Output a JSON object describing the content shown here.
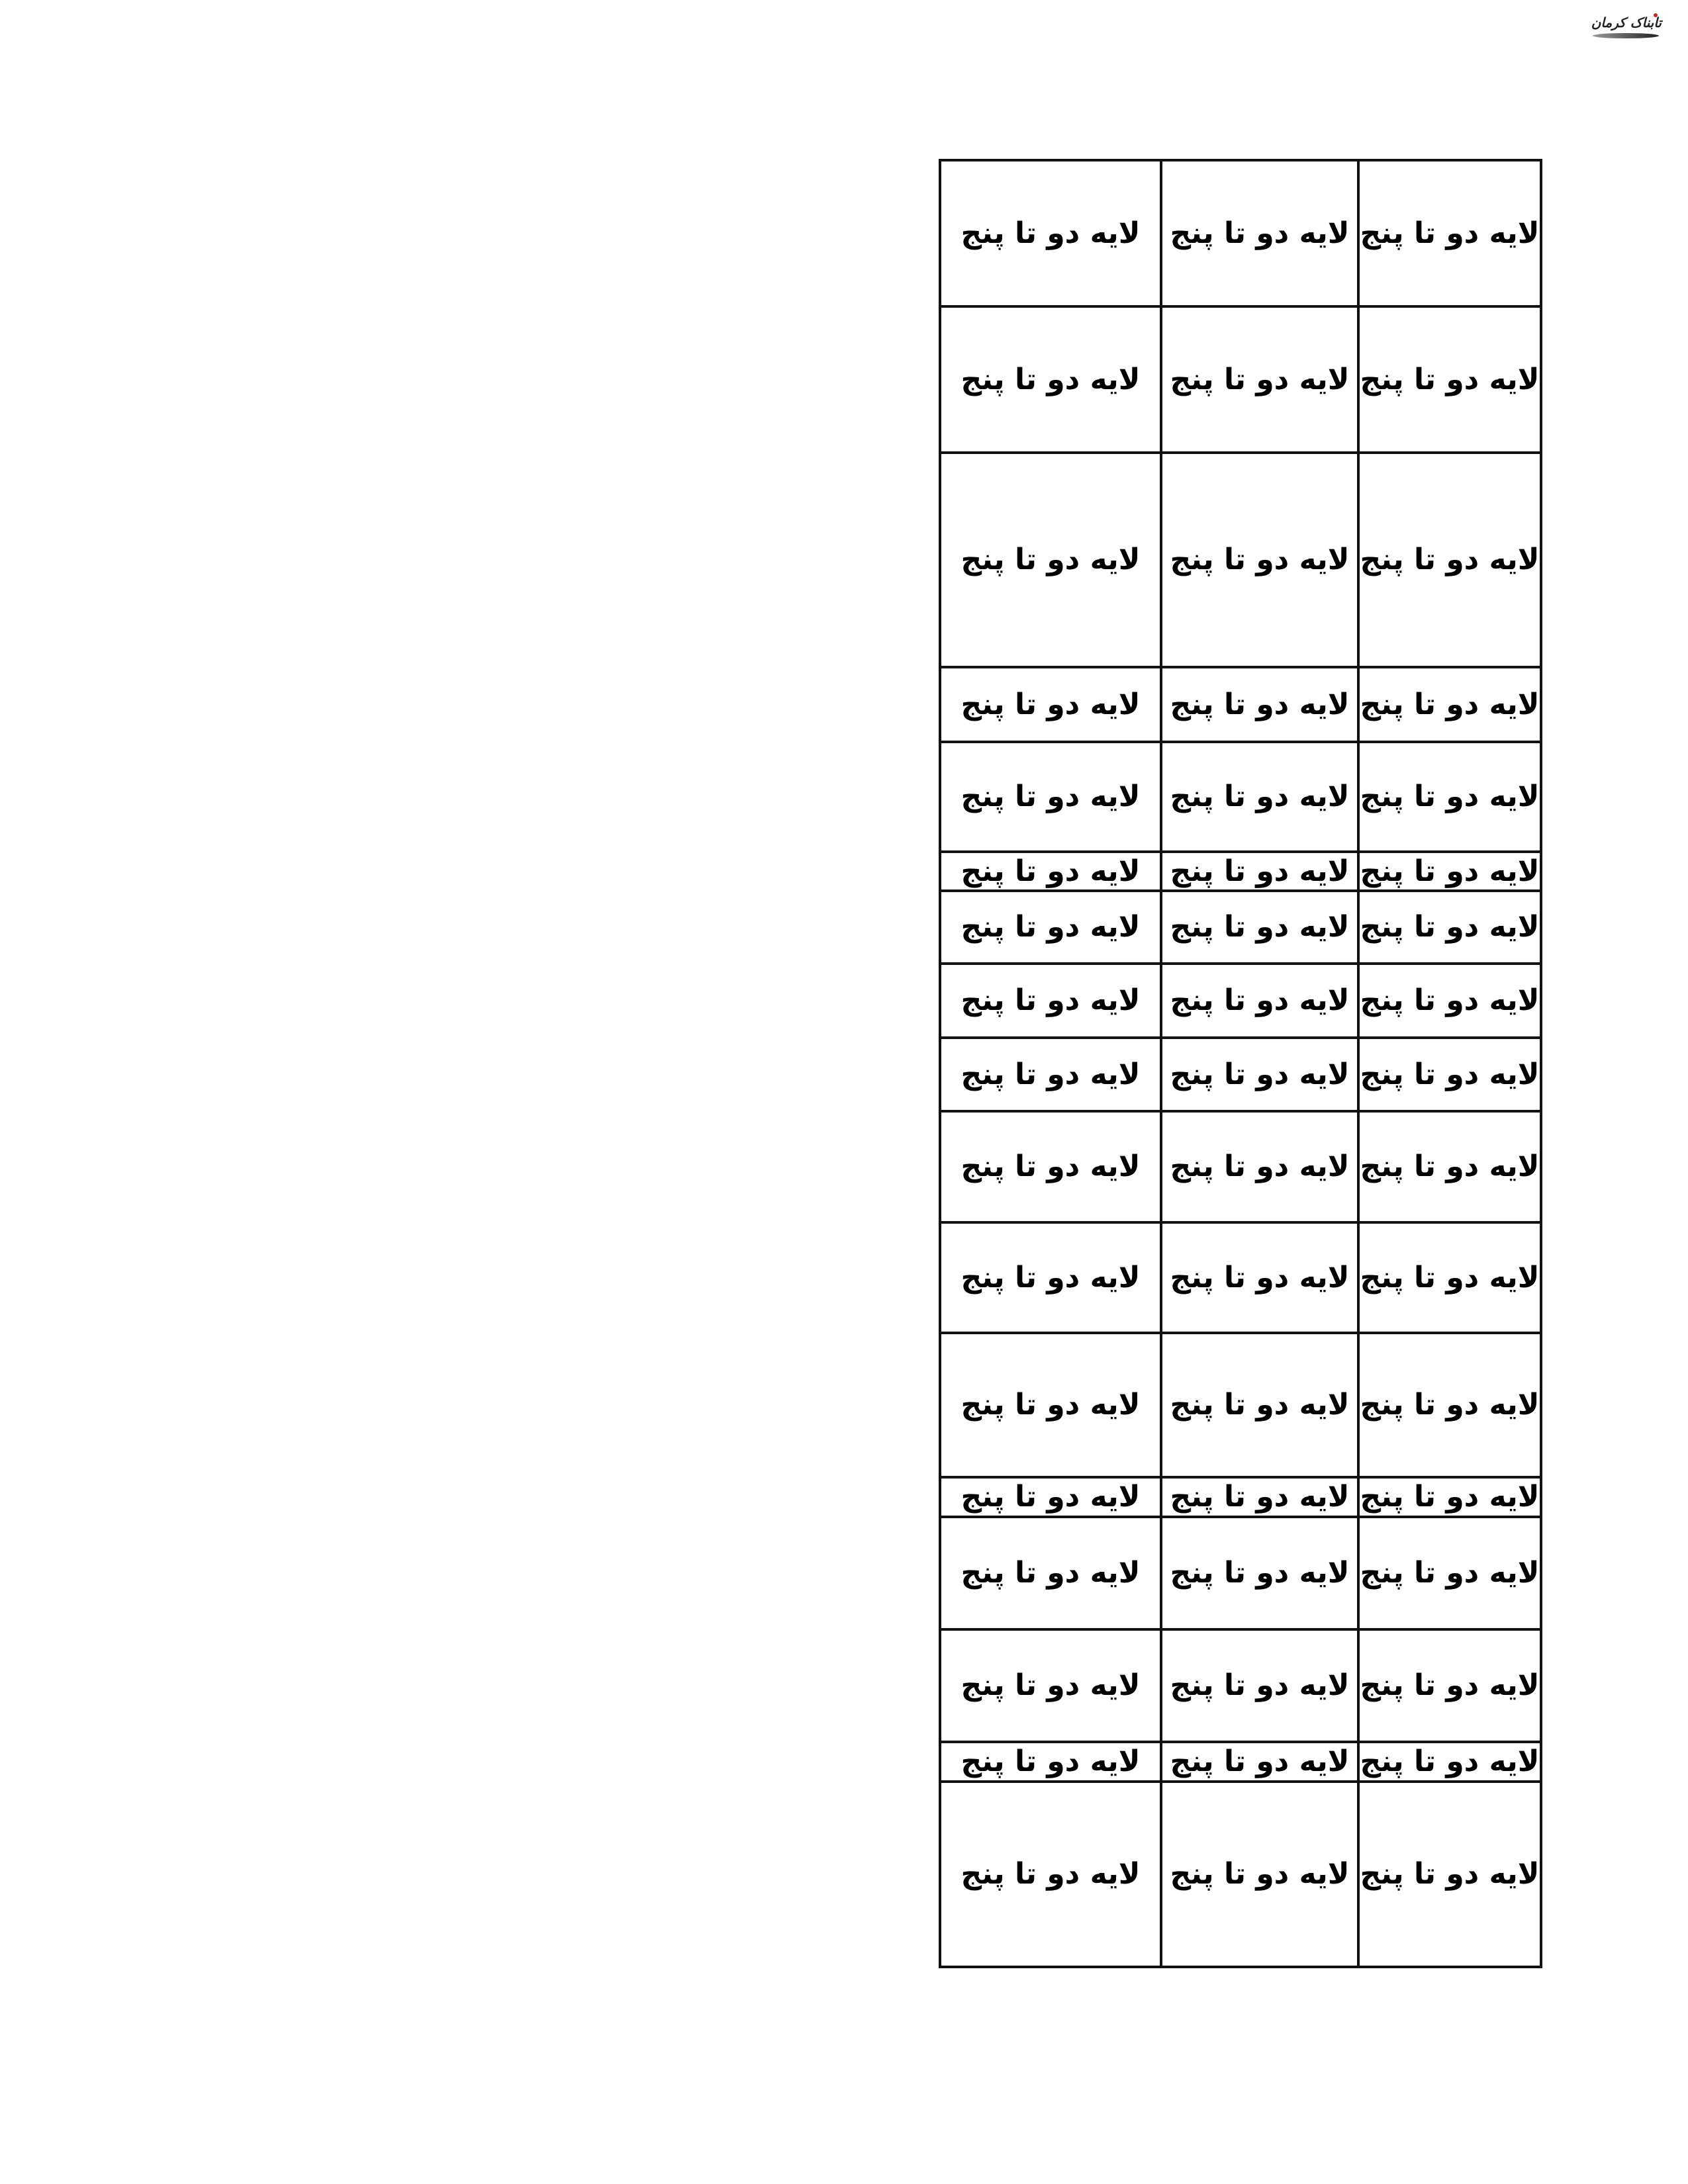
{
  "logo": {
    "text": "تابناک کرمان",
    "accent": "#c0282d"
  },
  "table": {
    "rows": [
      [
        "لایه دو تا پنج",
        "لایه دو تا پنج",
        "لایه دو تا پنج"
      ],
      [
        "لایه دو تا پنج",
        "لایه دو تا پنج",
        "لایه دو تا پنج"
      ],
      [
        "لایه دو تا پنج",
        "لایه دو تا پنج",
        "لایه دو تا پنج"
      ],
      [
        "لایه دو تا پنج",
        "لایه دو تا پنج",
        "لایه دو تا پنج"
      ],
      [
        "لایه دو تا پنج",
        "لایه دو تا پنج",
        "لایه دو تا پنج"
      ],
      [
        "لایه دو تا پنج",
        "لایه دو تا پنج",
        "لایه دو تا پنج"
      ],
      [
        "لایه دو تا پنج",
        "لایه دو تا پنج",
        "لایه دو تا پنج"
      ],
      [
        "لایه دو تا پنج",
        "لایه دو تا پنج",
        "لایه دو تا پنج"
      ],
      [
        "لایه دو تا پنج",
        "لایه دو تا پنج",
        "لایه دو تا پنج"
      ],
      [
        "لایه دو تا پنج",
        "لایه دو تا پنج",
        "لایه دو تا پنج"
      ],
      [
        "لایه دو تا پنج",
        "لایه دو تا پنج",
        "لایه دو تا پنج"
      ],
      [
        "لایه دو تا پنج",
        "لایه دو تا پنج",
        "لایه دو تا پنج"
      ],
      [
        "لایه دو تا پنج",
        "لایه دو تا پنج",
        "لایه دو تا پنج"
      ],
      [
        "لایه دو تا پنج",
        "لایه دو تا پنج",
        "لایه دو تا پنج"
      ],
      [
        "لایه دو تا پنج",
        "لایه دو تا پنج",
        "لایه دو تا پنج"
      ],
      [
        "لایه دو تا پنج",
        "لایه دو تا پنج",
        "لایه دو تا پنج"
      ],
      [
        "لایه دو تا پنج",
        "لایه دو تا پنج",
        "لایه دو تا پنج"
      ]
    ]
  }
}
